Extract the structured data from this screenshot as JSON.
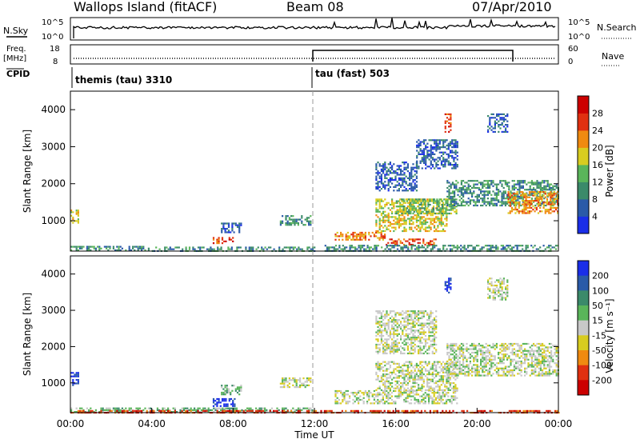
{
  "header": {
    "station": "Wallops Island (fitACF)",
    "beam": "Beam 08",
    "date": "07/Apr/2010"
  },
  "top_panels": {
    "nsky_label": "N.Sky",
    "nsky_ticks": [
      "10^5",
      "10^0"
    ],
    "nsearch_label": "N.Search",
    "nsearch_ticks": [
      "10^5",
      "10^0"
    ],
    "freq_label": "Freq.",
    "freq_unit": "[MHz]",
    "freq_ticks": [
      "18",
      "8"
    ],
    "nave_label": "Nave",
    "nave_ticks": [
      "60",
      "0"
    ],
    "cpid_label": "CPID",
    "cpid_segments": [
      {
        "label": "themis (tau) 3310",
        "start_hour": 0
      },
      {
        "label": "tau (fast) 503",
        "start_hour": 12
      }
    ]
  },
  "chart_data": [
    {
      "type": "heatmap",
      "name": "power",
      "xlabel": "",
      "ylabel": "Slant Range [km]",
      "xlim": [
        0,
        24
      ],
      "ylim": [
        180,
        4500
      ],
      "y_ticks": [
        "1000",
        "2000",
        "3000",
        "4000"
      ],
      "x_ticks": [
        "00:00",
        "04:00",
        "08:00",
        "12:00",
        "16:00",
        "20:00",
        "00:00"
      ],
      "colorbar": {
        "label": "Power [dB]",
        "ticks": [
          "4",
          "8",
          "12",
          "16",
          "20",
          "24",
          "28"
        ],
        "colors": [
          "#1a2ee8",
          "#2a5aa8",
          "#3b8a6a",
          "#5ab55a",
          "#d8cc20",
          "#f08a10",
          "#e03010",
          "#cc0000"
        ]
      },
      "regions": [
        {
          "t0": 0.0,
          "t1": 0.35,
          "r0": 950,
          "r1": 1300,
          "level": 4
        },
        {
          "t0": 0.0,
          "t1": 4.0,
          "r0": 180,
          "r1": 320,
          "level": 2
        },
        {
          "t0": 4.0,
          "t1": 12.0,
          "r0": 180,
          "r1": 300,
          "level": 2
        },
        {
          "t0": 7.0,
          "t1": 8.0,
          "r0": 380,
          "r1": 560,
          "level": 6
        },
        {
          "t0": 7.4,
          "t1": 8.4,
          "r0": 700,
          "r1": 950,
          "level": 1
        },
        {
          "t0": 10.3,
          "t1": 11.8,
          "r0": 880,
          "r1": 1150,
          "level": 2
        },
        {
          "t0": 13.0,
          "t1": 15.5,
          "r0": 500,
          "r1": 700,
          "level": 5
        },
        {
          "t0": 15.5,
          "t1": 18.0,
          "r0": 350,
          "r1": 520,
          "level": 6
        },
        {
          "t0": 15.0,
          "t1": 18.5,
          "r0": 700,
          "r1": 1600,
          "level": 4
        },
        {
          "t0": 16.0,
          "t1": 19.0,
          "r0": 1200,
          "r1": 1600,
          "level": 3
        },
        {
          "t0": 18.5,
          "t1": 24.0,
          "r0": 1400,
          "r1": 2100,
          "level": 2
        },
        {
          "t0": 21.5,
          "t1": 24.0,
          "r0": 1200,
          "r1": 1800,
          "level": 5
        },
        {
          "t0": 20.5,
          "t1": 21.5,
          "r0": 3400,
          "r1": 3900,
          "level": 1
        },
        {
          "t0": 18.4,
          "t1": 18.7,
          "r0": 3400,
          "r1": 3900,
          "level": 6
        },
        {
          "t0": 15.0,
          "t1": 17.0,
          "r0": 1800,
          "r1": 2600,
          "level": 1
        },
        {
          "t0": 17.0,
          "t1": 19.0,
          "r0": 2400,
          "r1": 3200,
          "level": 1
        },
        {
          "t0": 12.5,
          "t1": 24.0,
          "r0": 180,
          "r1": 350,
          "level": 2
        }
      ]
    },
    {
      "type": "heatmap",
      "name": "velocity",
      "xlabel": "Time UT",
      "ylabel": "Slant Range [km]",
      "xlim": [
        0,
        24
      ],
      "ylim": [
        180,
        4500
      ],
      "y_ticks": [
        "1000",
        "2000",
        "3000",
        "4000"
      ],
      "x_ticks": [
        "00:00",
        "04:00",
        "08:00",
        "12:00",
        "16:00",
        "20:00",
        "00:00"
      ],
      "colorbar": {
        "label": "Velocity [m s⁻¹]",
        "ticks": [
          "200",
          "100",
          "50",
          "15",
          "-15",
          "-50",
          "-100",
          "-200"
        ],
        "colors": [
          "#1a2ee8",
          "#2a5aa8",
          "#3b8a6a",
          "#5ab55a",
          "#c8c8c8",
          "#d8cc20",
          "#f08a10",
          "#e03010",
          "#cc0000"
        ]
      },
      "regions": [
        {
          "t0": 0.0,
          "t1": 0.35,
          "r0": 950,
          "r1": 1300,
          "level": 0
        },
        {
          "t0": 0.0,
          "t1": 12.0,
          "r0": 180,
          "r1": 320,
          "level": 3
        },
        {
          "t0": 7.0,
          "t1": 8.1,
          "r0": 380,
          "r1": 580,
          "level": 0
        },
        {
          "t0": 7.4,
          "t1": 8.4,
          "r0": 700,
          "r1": 950,
          "level": 3
        },
        {
          "t0": 10.3,
          "t1": 11.8,
          "r0": 880,
          "r1": 1150,
          "level": 4
        },
        {
          "t0": 13.0,
          "t1": 19.0,
          "r0": 450,
          "r1": 800,
          "level": 4
        },
        {
          "t0": 15.0,
          "t1": 19.0,
          "r0": 800,
          "r1": 1600,
          "level": 4
        },
        {
          "t0": 18.5,
          "t1": 24.0,
          "r0": 1200,
          "r1": 2100,
          "level": 4
        },
        {
          "t0": 18.4,
          "t1": 18.7,
          "r0": 3500,
          "r1": 3900,
          "level": 0
        },
        {
          "t0": 20.5,
          "t1": 21.5,
          "r0": 3300,
          "r1": 3900,
          "level": 4
        },
        {
          "t0": 15.0,
          "t1": 18.0,
          "r0": 1800,
          "r1": 3000,
          "level": 4
        },
        {
          "t0": 0.0,
          "t1": 24.0,
          "r0": 180,
          "r1": 250,
          "level": 7
        }
      ]
    }
  ]
}
